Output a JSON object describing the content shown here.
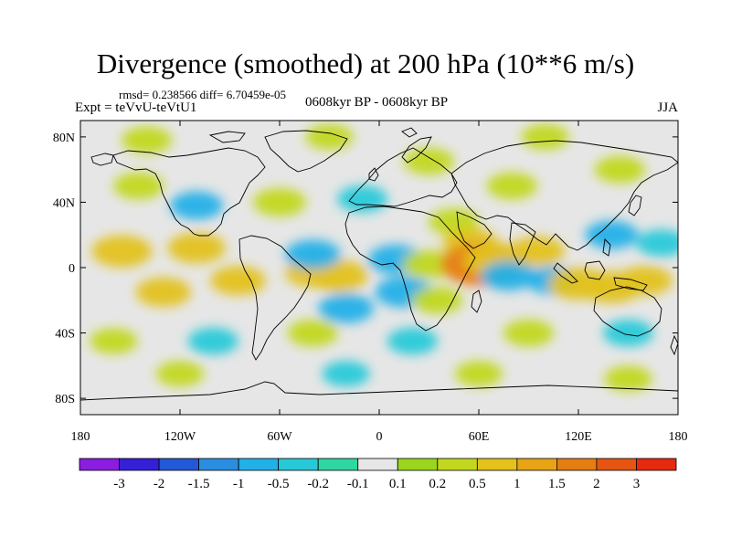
{
  "title": "Divergence (smoothed) at 200 hPa (10**6 m/s)",
  "stats": "rmsd= 0.238566 diff= 6.70459e-05",
  "expt": "Expt = teVvU-teVtU1",
  "period": "0608kyr BP - 0608kyr BP",
  "season": "JJA",
  "axes": {
    "lat_ticks": [
      {
        "value": 80,
        "label": "80N"
      },
      {
        "value": 40,
        "label": "40N"
      },
      {
        "value": 0,
        "label": "0"
      },
      {
        "value": -40,
        "label": "40S"
      },
      {
        "value": -80,
        "label": "80S"
      }
    ],
    "lon_ticks": [
      {
        "value": -180,
        "label": "180"
      },
      {
        "value": -120,
        "label": "120W"
      },
      {
        "value": -60,
        "label": "60W"
      },
      {
        "value": 0,
        "label": "0"
      },
      {
        "value": 60,
        "label": "60E"
      },
      {
        "value": 120,
        "label": "120E"
      },
      {
        "value": 180,
        "label": "180"
      }
    ]
  },
  "colorbar": {
    "colors": [
      "#8a1de0",
      "#3520d8",
      "#2359d6",
      "#2a8ee0",
      "#22b0e8",
      "#27c9d9",
      "#2ed6a2",
      "#e6e6e6",
      "#9ad61c",
      "#c2d81f",
      "#e3c21b",
      "#e8a415",
      "#e67d12",
      "#e65512",
      "#e52a0e"
    ],
    "labels": [
      "-3",
      "-2",
      "-1.5",
      "-1",
      "-0.5",
      "-0.2",
      "-0.1",
      "0.1",
      "0.2",
      "0.5",
      "1",
      "1.5",
      "2",
      "3"
    ]
  },
  "chart_data": {
    "type": "heatmap",
    "xlim": [
      -180,
      180
    ],
    "ylim": [
      -90,
      90
    ],
    "levels": [
      -3,
      -2,
      -1.5,
      -1,
      -0.5,
      -0.2,
      -0.1,
      0.1,
      0.2,
      0.5,
      1,
      1.5,
      2,
      3
    ],
    "anomalies": [
      {
        "lon": -155,
        "lat": 10,
        "value": 0.8
      },
      {
        "lon": -130,
        "lat": -15,
        "value": 0.6
      },
      {
        "lon": -110,
        "lat": 12,
        "value": 0.7
      },
      {
        "lon": -85,
        "lat": -8,
        "value": 0.6
      },
      {
        "lon": -40,
        "lat": -3,
        "value": 0.6
      },
      {
        "lon": -25,
        "lat": -5,
        "value": 0.8
      },
      {
        "lon": -40,
        "lat": 8,
        "value": -0.6
      },
      {
        "lon": -20,
        "lat": -25,
        "value": -0.6
      },
      {
        "lon": 10,
        "lat": 5,
        "value": -0.6
      },
      {
        "lon": 15,
        "lat": -15,
        "value": -0.7
      },
      {
        "lon": 30,
        "lat": 2,
        "value": 0.5
      },
      {
        "lon": 35,
        "lat": -20,
        "value": 0.4
      },
      {
        "lon": 45,
        "lat": 28,
        "value": 0.4
      },
      {
        "lon": 55,
        "lat": 15,
        "value": 0.6
      },
      {
        "lon": 62,
        "lat": 2,
        "value": 1.7
      },
      {
        "lon": 70,
        "lat": 5,
        "value": 0.9
      },
      {
        "lon": 78,
        "lat": -5,
        "value": -0.6
      },
      {
        "lon": 95,
        "lat": 10,
        "value": 0.6
      },
      {
        "lon": 105,
        "lat": -8,
        "value": -0.5
      },
      {
        "lon": 120,
        "lat": -10,
        "value": 0.8
      },
      {
        "lon": 140,
        "lat": -12,
        "value": 0.8
      },
      {
        "lon": 160,
        "lat": -8,
        "value": 0.6
      },
      {
        "lon": 140,
        "lat": 20,
        "value": -0.5
      },
      {
        "lon": 170,
        "lat": 15,
        "value": -0.4
      },
      {
        "lon": -145,
        "lat": 50,
        "value": 0.4
      },
      {
        "lon": -110,
        "lat": 38,
        "value": -0.5
      },
      {
        "lon": -60,
        "lat": 40,
        "value": 0.5
      },
      {
        "lon": -10,
        "lat": 42,
        "value": -0.4
      },
      {
        "lon": 30,
        "lat": 65,
        "value": 0.4
      },
      {
        "lon": 80,
        "lat": 50,
        "value": 0.4
      },
      {
        "lon": 145,
        "lat": 60,
        "value": 0.4
      },
      {
        "lon": -140,
        "lat": 78,
        "value": 0.4
      },
      {
        "lon": -30,
        "lat": 80,
        "value": 0.3
      },
      {
        "lon": 100,
        "lat": 80,
        "value": 0.3
      },
      {
        "lon": -160,
        "lat": -45,
        "value": 0.3
      },
      {
        "lon": -100,
        "lat": -45,
        "value": -0.4
      },
      {
        "lon": -40,
        "lat": -40,
        "value": 0.4
      },
      {
        "lon": 20,
        "lat": -45,
        "value": -0.4
      },
      {
        "lon": 90,
        "lat": -40,
        "value": 0.4
      },
      {
        "lon": 150,
        "lat": -40,
        "value": -0.4
      },
      {
        "lon": -120,
        "lat": -65,
        "value": 0.3
      },
      {
        "lon": -20,
        "lat": -65,
        "value": -0.3
      },
      {
        "lon": 60,
        "lat": -65,
        "value": 0.3
      },
      {
        "lon": 150,
        "lat": -68,
        "value": 0.3
      }
    ]
  }
}
